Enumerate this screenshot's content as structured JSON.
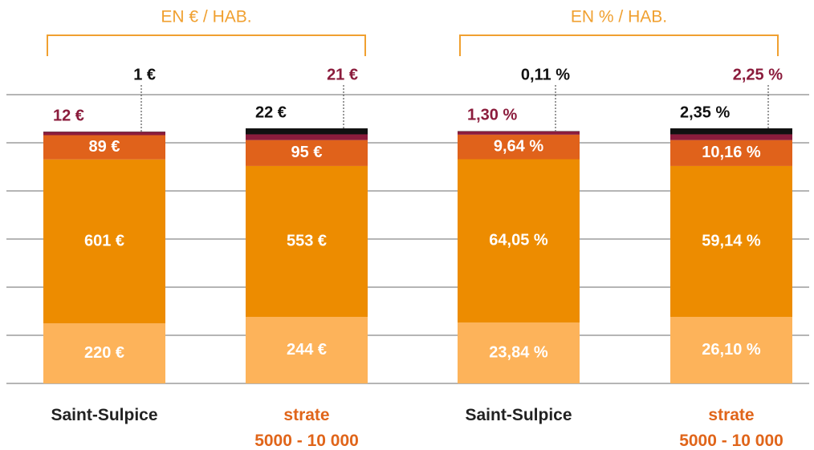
{
  "chart_data": [
    {
      "type": "bar",
      "stacked": true,
      "title": "EN € / HAB.",
      "title_color": "#f0a030",
      "categories": [
        "Saint-Sulpice",
        "strate\n5000 - 10 000"
      ],
      "category_colors": [
        "#222222",
        "#e0651a"
      ],
      "series": [
        {
          "color": "#fdb35a",
          "values": [
            220,
            244
          ],
          "value_labels": [
            "220 €",
            "244 €"
          ]
        },
        {
          "color": "#ed8c00",
          "values": [
            601,
            553
          ],
          "value_labels": [
            "601 €",
            "553 €"
          ]
        },
        {
          "color": "#e0621b",
          "values": [
            89,
            95
          ],
          "value_labels": [
            "89 €",
            "95 €"
          ]
        },
        {
          "color": "#8b1c3c",
          "values": [
            12,
            21
          ],
          "value_labels": [
            "12 €",
            "21 €"
          ]
        },
        {
          "color": "#111111",
          "values": [
            1,
            22
          ],
          "value_labels": [
            "1 €",
            "22 €"
          ]
        }
      ]
    },
    {
      "type": "bar",
      "stacked": true,
      "title": "EN % / HAB.",
      "title_color": "#f0a030",
      "categories": [
        "Saint-Sulpice",
        "strate\n5000 - 10 000"
      ],
      "category_colors": [
        "#222222",
        "#e0651a"
      ],
      "series": [
        {
          "color": "#fdb35a",
          "values": [
            23.84,
            26.1
          ],
          "value_labels": [
            "23,84 %",
            "26,10 %"
          ]
        },
        {
          "color": "#ed8c00",
          "values": [
            64.05,
            59.14
          ],
          "value_labels": [
            "64,05 %",
            "59,14 %"
          ]
        },
        {
          "color": "#e0621b",
          "values": [
            9.64,
            10.16
          ],
          "value_labels": [
            "9,64 %",
            "10,16 %"
          ]
        },
        {
          "color": "#8b1c3c",
          "values": [
            1.3,
            2.25
          ],
          "value_labels": [
            "1,30 %",
            "2,25 %"
          ]
        },
        {
          "color": "#111111",
          "values": [
            0.11,
            2.35
          ],
          "value_labels": [
            "0,11 %",
            "2,35 %"
          ]
        }
      ]
    }
  ]
}
